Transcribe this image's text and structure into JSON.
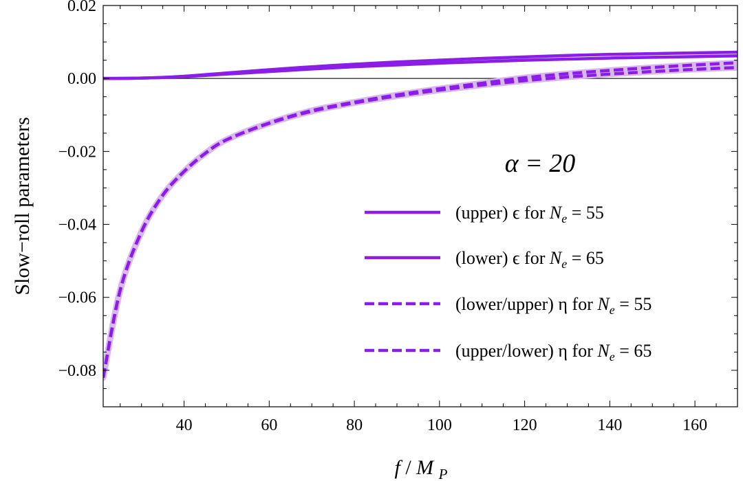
{
  "chart_data": {
    "type": "line",
    "xlabel": "f / M_P",
    "ylabel": "Slow−roll  parameters",
    "xlim": [
      21,
      170
    ],
    "ylim": [
      -0.09,
      0.02
    ],
    "xticks": [
      40,
      60,
      80,
      100,
      120,
      140,
      160
    ],
    "xtick_labels": [
      "40",
      "60",
      "80",
      "100",
      "120",
      "140",
      "160"
    ],
    "yticks": [
      0.02,
      0.0,
      -0.02,
      -0.04,
      -0.06,
      -0.08
    ],
    "ytick_labels": [
      "0.02",
      "0.00",
      "−0.02",
      "−0.04",
      "−0.06",
      "−0.08"
    ],
    "annotation": "α = 20",
    "legend_position": "right",
    "colors": {
      "main": "#8b1ee6",
      "band": "#d9b8ee",
      "zero_line": "#333333"
    },
    "series": [
      {
        "name": "(upper) ϵ for N_e = 55",
        "legend": {
          "prefix": "(upper) ϵ for ",
          "sym": "N",
          "sub": "e",
          "suffix": " = 55"
        },
        "style": "solid",
        "x": [
          21,
          30,
          40,
          50,
          60,
          70,
          80,
          90,
          100,
          110,
          120,
          130,
          140,
          150,
          160,
          170
        ],
        "y": [
          0.0,
          0.0001,
          0.0006,
          0.0015,
          0.0024,
          0.0032,
          0.0039,
          0.0045,
          0.005,
          0.0055,
          0.0059,
          0.0063,
          0.0066,
          0.0068,
          0.007,
          0.0072
        ]
      },
      {
        "name": "(lower) ϵ for N_e = 65",
        "legend": {
          "prefix": "(lower) ϵ for ",
          "sym": "N",
          "sub": "e",
          "suffix": " = 65"
        },
        "style": "solid",
        "x": [
          21,
          30,
          40,
          50,
          60,
          70,
          80,
          90,
          100,
          110,
          120,
          130,
          140,
          150,
          160,
          170
        ],
        "y": [
          0.0,
          0.0001,
          0.0005,
          0.0012,
          0.0019,
          0.0026,
          0.0032,
          0.0037,
          0.0042,
          0.0046,
          0.005,
          0.0053,
          0.0056,
          0.0058,
          0.006,
          0.0062
        ]
      },
      {
        "name": "(lower/upper) η for N_e = 55",
        "legend": {
          "prefix": "(lower/upper) η for ",
          "sym": "N",
          "sub": "e",
          "suffix": " = 55"
        },
        "style": "dashed",
        "x": [
          21,
          25,
          30,
          35,
          40,
          45,
          50,
          60,
          70,
          80,
          90,
          100,
          110,
          120,
          130,
          140,
          150,
          160,
          170
        ],
        "y": [
          -0.082,
          -0.058,
          -0.042,
          -0.032,
          -0.0255,
          -0.0205,
          -0.0168,
          -0.0122,
          -0.0088,
          -0.0065,
          -0.0045,
          -0.0028,
          -0.0013,
          0.0002,
          0.0013,
          0.0022,
          0.003,
          0.0037,
          0.0043
        ]
      },
      {
        "name": "(upper/lower) η for N_e = 65",
        "legend": {
          "prefix": "(upper/lower) η for ",
          "sym": "N",
          "sub": "e",
          "suffix": " = 65"
        },
        "style": "dashed",
        "x": [
          21,
          25,
          30,
          35,
          40,
          45,
          50,
          60,
          70,
          80,
          90,
          100,
          110,
          120,
          130,
          140,
          150,
          160,
          170
        ],
        "y": [
          -0.082,
          -0.058,
          -0.042,
          -0.032,
          -0.0255,
          -0.0205,
          -0.0168,
          -0.0123,
          -0.009,
          -0.0067,
          -0.0048,
          -0.0032,
          -0.0018,
          -0.0006,
          0.0004,
          0.0012,
          0.0019,
          0.0025,
          0.003
        ]
      }
    ]
  }
}
